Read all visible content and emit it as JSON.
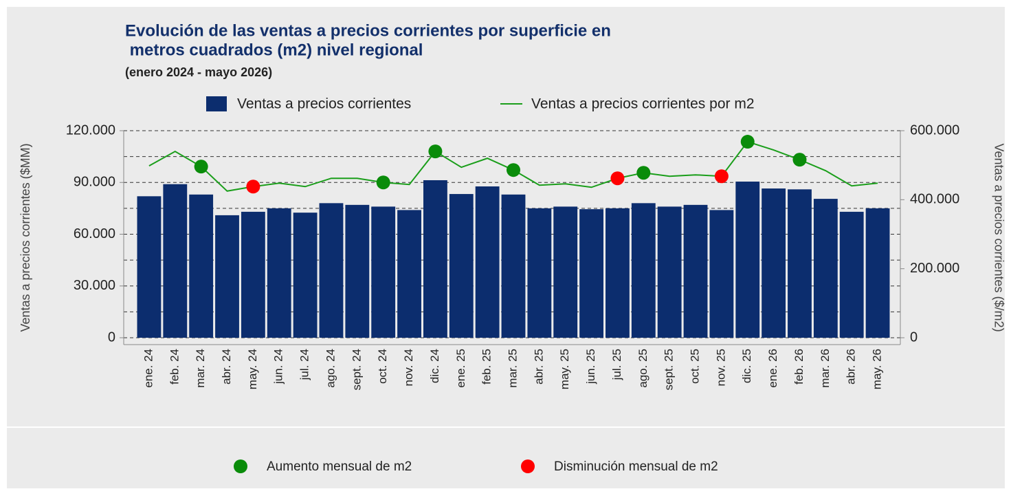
{
  "chart_data": {
    "type": "bar-line",
    "title": [
      "Evolución de las ventas a precios corrientes por superficie en",
      " metros cuadrados (m2) nivel regional"
    ],
    "subtitle": "(enero 2024 - mayo 2026)",
    "y_label": "Ventas a precios corrientes ($MM)",
    "y2_label": "Ventas a precios corrientes ($/m2)",
    "categories": [
      "ene. 24",
      "feb. 24",
      "mar. 24",
      "abr. 24",
      "may. 24",
      "jun. 24",
      "jul. 24",
      "ago. 24",
      "sept. 24",
      "oct. 24",
      "nov. 24",
      "dic. 24",
      "ene. 25",
      "feb. 25",
      "mar. 25",
      "abr. 25",
      "may. 25",
      "jun. 25",
      "jul. 25",
      "ago. 25",
      "sept. 25",
      "oct. 25",
      "nov. 25",
      "dic. 25",
      "ene. 26",
      "feb. 26",
      "mar. 26",
      "abr. 26",
      "may. 26"
    ],
    "series": [
      {
        "name": "Ventas a precios corrientes",
        "kind": "bar",
        "axis": "y",
        "color": "#0c2d6e",
        "values": [
          82000,
          89000,
          83000,
          71000,
          73000,
          75000,
          72500,
          78000,
          77000,
          76000,
          74000,
          91300,
          83300,
          87700,
          83000,
          75000,
          76000,
          74500,
          75000,
          78000,
          76000,
          77000,
          74000,
          90500,
          86500,
          86000,
          80500,
          73000,
          75000
        ]
      },
      {
        "name": "Ventas a precios corrientes por m2",
        "kind": "line",
        "axis": "y2",
        "color": "#1a9e1a",
        "values": [
          498000,
          540000,
          496000,
          425000,
          438000,
          448000,
          438000,
          462000,
          462000,
          450000,
          444000,
          540000,
          494000,
          520000,
          486000,
          442000,
          446000,
          436000,
          462000,
          478000,
          468000,
          472000,
          468000,
          568000,
          544000,
          516000,
          484000,
          440000,
          448000
        ]
      },
      {
        "name": "Aumento mensual de m2",
        "kind": "points",
        "axis": "y2",
        "color": "#0a8c0a",
        "values": [
          null,
          null,
          496000,
          null,
          null,
          null,
          null,
          null,
          null,
          450000,
          null,
          540000,
          null,
          null,
          486000,
          null,
          null,
          null,
          null,
          478000,
          null,
          null,
          null,
          568000,
          null,
          516000,
          null,
          null,
          null
        ]
      },
      {
        "name": "Disminución mensual de m2",
        "kind": "points",
        "axis": "y2",
        "color": "#ff0000",
        "values": [
          null,
          null,
          null,
          null,
          438000,
          null,
          null,
          null,
          null,
          null,
          null,
          null,
          null,
          null,
          null,
          null,
          null,
          null,
          462000,
          null,
          null,
          null,
          468000,
          null,
          null,
          null,
          null,
          null,
          null
        ]
      }
    ],
    "ylim": [
      0,
      120000
    ],
    "yticks": [
      0,
      {
        "value": 30000,
        "label": "30.000"
      },
      {
        "value": 60000,
        "label": "60.000"
      },
      {
        "value": 90000,
        "label": "90.000"
      },
      {
        "value": 120000,
        "label": "120.000"
      }
    ],
    "minor_yticks": [
      15000,
      45000,
      75000,
      105000
    ],
    "y2lim": [
      0,
      600000
    ],
    "y2ticks": [
      0,
      {
        "value": 200000,
        "label": "200.000"
      },
      {
        "value": 400000,
        "label": "400.000"
      },
      {
        "value": 600000,
        "label": "600.000"
      }
    ],
    "grid": true
  }
}
